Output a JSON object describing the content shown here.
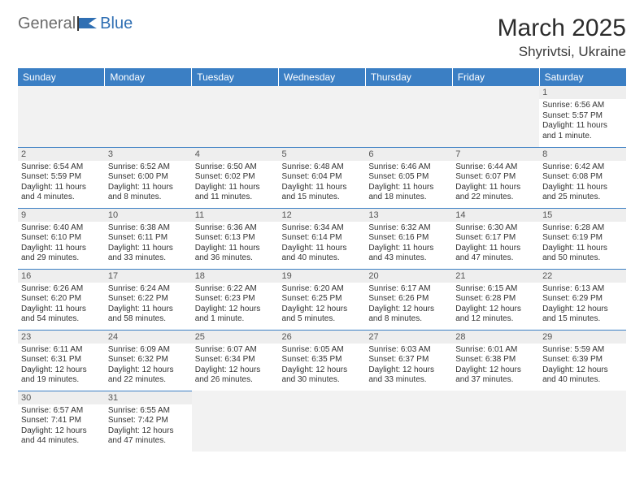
{
  "logo": {
    "part1": "General",
    "part2": "Blue"
  },
  "title": "March 2025",
  "location": "Shyrivtsi, Ukraine",
  "weekdays": [
    "Sunday",
    "Monday",
    "Tuesday",
    "Wednesday",
    "Thursday",
    "Friday",
    "Saturday"
  ],
  "colors": {
    "header_bg": "#3b7fc4",
    "header_text": "#ffffff",
    "empty_bg": "#f2f2f2",
    "daynum_bg": "#eeeeee",
    "logo_blue": "#2f6fb3"
  },
  "layout": {
    "lead_blanks": 6,
    "trail_blanks": 5,
    "cols": 7,
    "rows": 6
  },
  "days": [
    {
      "n": 1,
      "sunrise": "6:56 AM",
      "sunset": "5:57 PM",
      "daylight": "11 hours and 1 minute."
    },
    {
      "n": 2,
      "sunrise": "6:54 AM",
      "sunset": "5:59 PM",
      "daylight": "11 hours and 4 minutes."
    },
    {
      "n": 3,
      "sunrise": "6:52 AM",
      "sunset": "6:00 PM",
      "daylight": "11 hours and 8 minutes."
    },
    {
      "n": 4,
      "sunrise": "6:50 AM",
      "sunset": "6:02 PM",
      "daylight": "11 hours and 11 minutes."
    },
    {
      "n": 5,
      "sunrise": "6:48 AM",
      "sunset": "6:04 PM",
      "daylight": "11 hours and 15 minutes."
    },
    {
      "n": 6,
      "sunrise": "6:46 AM",
      "sunset": "6:05 PM",
      "daylight": "11 hours and 18 minutes."
    },
    {
      "n": 7,
      "sunrise": "6:44 AM",
      "sunset": "6:07 PM",
      "daylight": "11 hours and 22 minutes."
    },
    {
      "n": 8,
      "sunrise": "6:42 AM",
      "sunset": "6:08 PM",
      "daylight": "11 hours and 25 minutes."
    },
    {
      "n": 9,
      "sunrise": "6:40 AM",
      "sunset": "6:10 PM",
      "daylight": "11 hours and 29 minutes."
    },
    {
      "n": 10,
      "sunrise": "6:38 AM",
      "sunset": "6:11 PM",
      "daylight": "11 hours and 33 minutes."
    },
    {
      "n": 11,
      "sunrise": "6:36 AM",
      "sunset": "6:13 PM",
      "daylight": "11 hours and 36 minutes."
    },
    {
      "n": 12,
      "sunrise": "6:34 AM",
      "sunset": "6:14 PM",
      "daylight": "11 hours and 40 minutes."
    },
    {
      "n": 13,
      "sunrise": "6:32 AM",
      "sunset": "6:16 PM",
      "daylight": "11 hours and 43 minutes."
    },
    {
      "n": 14,
      "sunrise": "6:30 AM",
      "sunset": "6:17 PM",
      "daylight": "11 hours and 47 minutes."
    },
    {
      "n": 15,
      "sunrise": "6:28 AM",
      "sunset": "6:19 PM",
      "daylight": "11 hours and 50 minutes."
    },
    {
      "n": 16,
      "sunrise": "6:26 AM",
      "sunset": "6:20 PM",
      "daylight": "11 hours and 54 minutes."
    },
    {
      "n": 17,
      "sunrise": "6:24 AM",
      "sunset": "6:22 PM",
      "daylight": "11 hours and 58 minutes."
    },
    {
      "n": 18,
      "sunrise": "6:22 AM",
      "sunset": "6:23 PM",
      "daylight": "12 hours and 1 minute."
    },
    {
      "n": 19,
      "sunrise": "6:20 AM",
      "sunset": "6:25 PM",
      "daylight": "12 hours and 5 minutes."
    },
    {
      "n": 20,
      "sunrise": "6:17 AM",
      "sunset": "6:26 PM",
      "daylight": "12 hours and 8 minutes."
    },
    {
      "n": 21,
      "sunrise": "6:15 AM",
      "sunset": "6:28 PM",
      "daylight": "12 hours and 12 minutes."
    },
    {
      "n": 22,
      "sunrise": "6:13 AM",
      "sunset": "6:29 PM",
      "daylight": "12 hours and 15 minutes."
    },
    {
      "n": 23,
      "sunrise": "6:11 AM",
      "sunset": "6:31 PM",
      "daylight": "12 hours and 19 minutes."
    },
    {
      "n": 24,
      "sunrise": "6:09 AM",
      "sunset": "6:32 PM",
      "daylight": "12 hours and 22 minutes."
    },
    {
      "n": 25,
      "sunrise": "6:07 AM",
      "sunset": "6:34 PM",
      "daylight": "12 hours and 26 minutes."
    },
    {
      "n": 26,
      "sunrise": "6:05 AM",
      "sunset": "6:35 PM",
      "daylight": "12 hours and 30 minutes."
    },
    {
      "n": 27,
      "sunrise": "6:03 AM",
      "sunset": "6:37 PM",
      "daylight": "12 hours and 33 minutes."
    },
    {
      "n": 28,
      "sunrise": "6:01 AM",
      "sunset": "6:38 PM",
      "daylight": "12 hours and 37 minutes."
    },
    {
      "n": 29,
      "sunrise": "5:59 AM",
      "sunset": "6:39 PM",
      "daylight": "12 hours and 40 minutes."
    },
    {
      "n": 30,
      "sunrise": "6:57 AM",
      "sunset": "7:41 PM",
      "daylight": "12 hours and 44 minutes."
    },
    {
      "n": 31,
      "sunrise": "6:55 AM",
      "sunset": "7:42 PM",
      "daylight": "12 hours and 47 minutes."
    }
  ],
  "labels": {
    "sunrise": "Sunrise: ",
    "sunset": "Sunset: ",
    "daylight": "Daylight: "
  }
}
